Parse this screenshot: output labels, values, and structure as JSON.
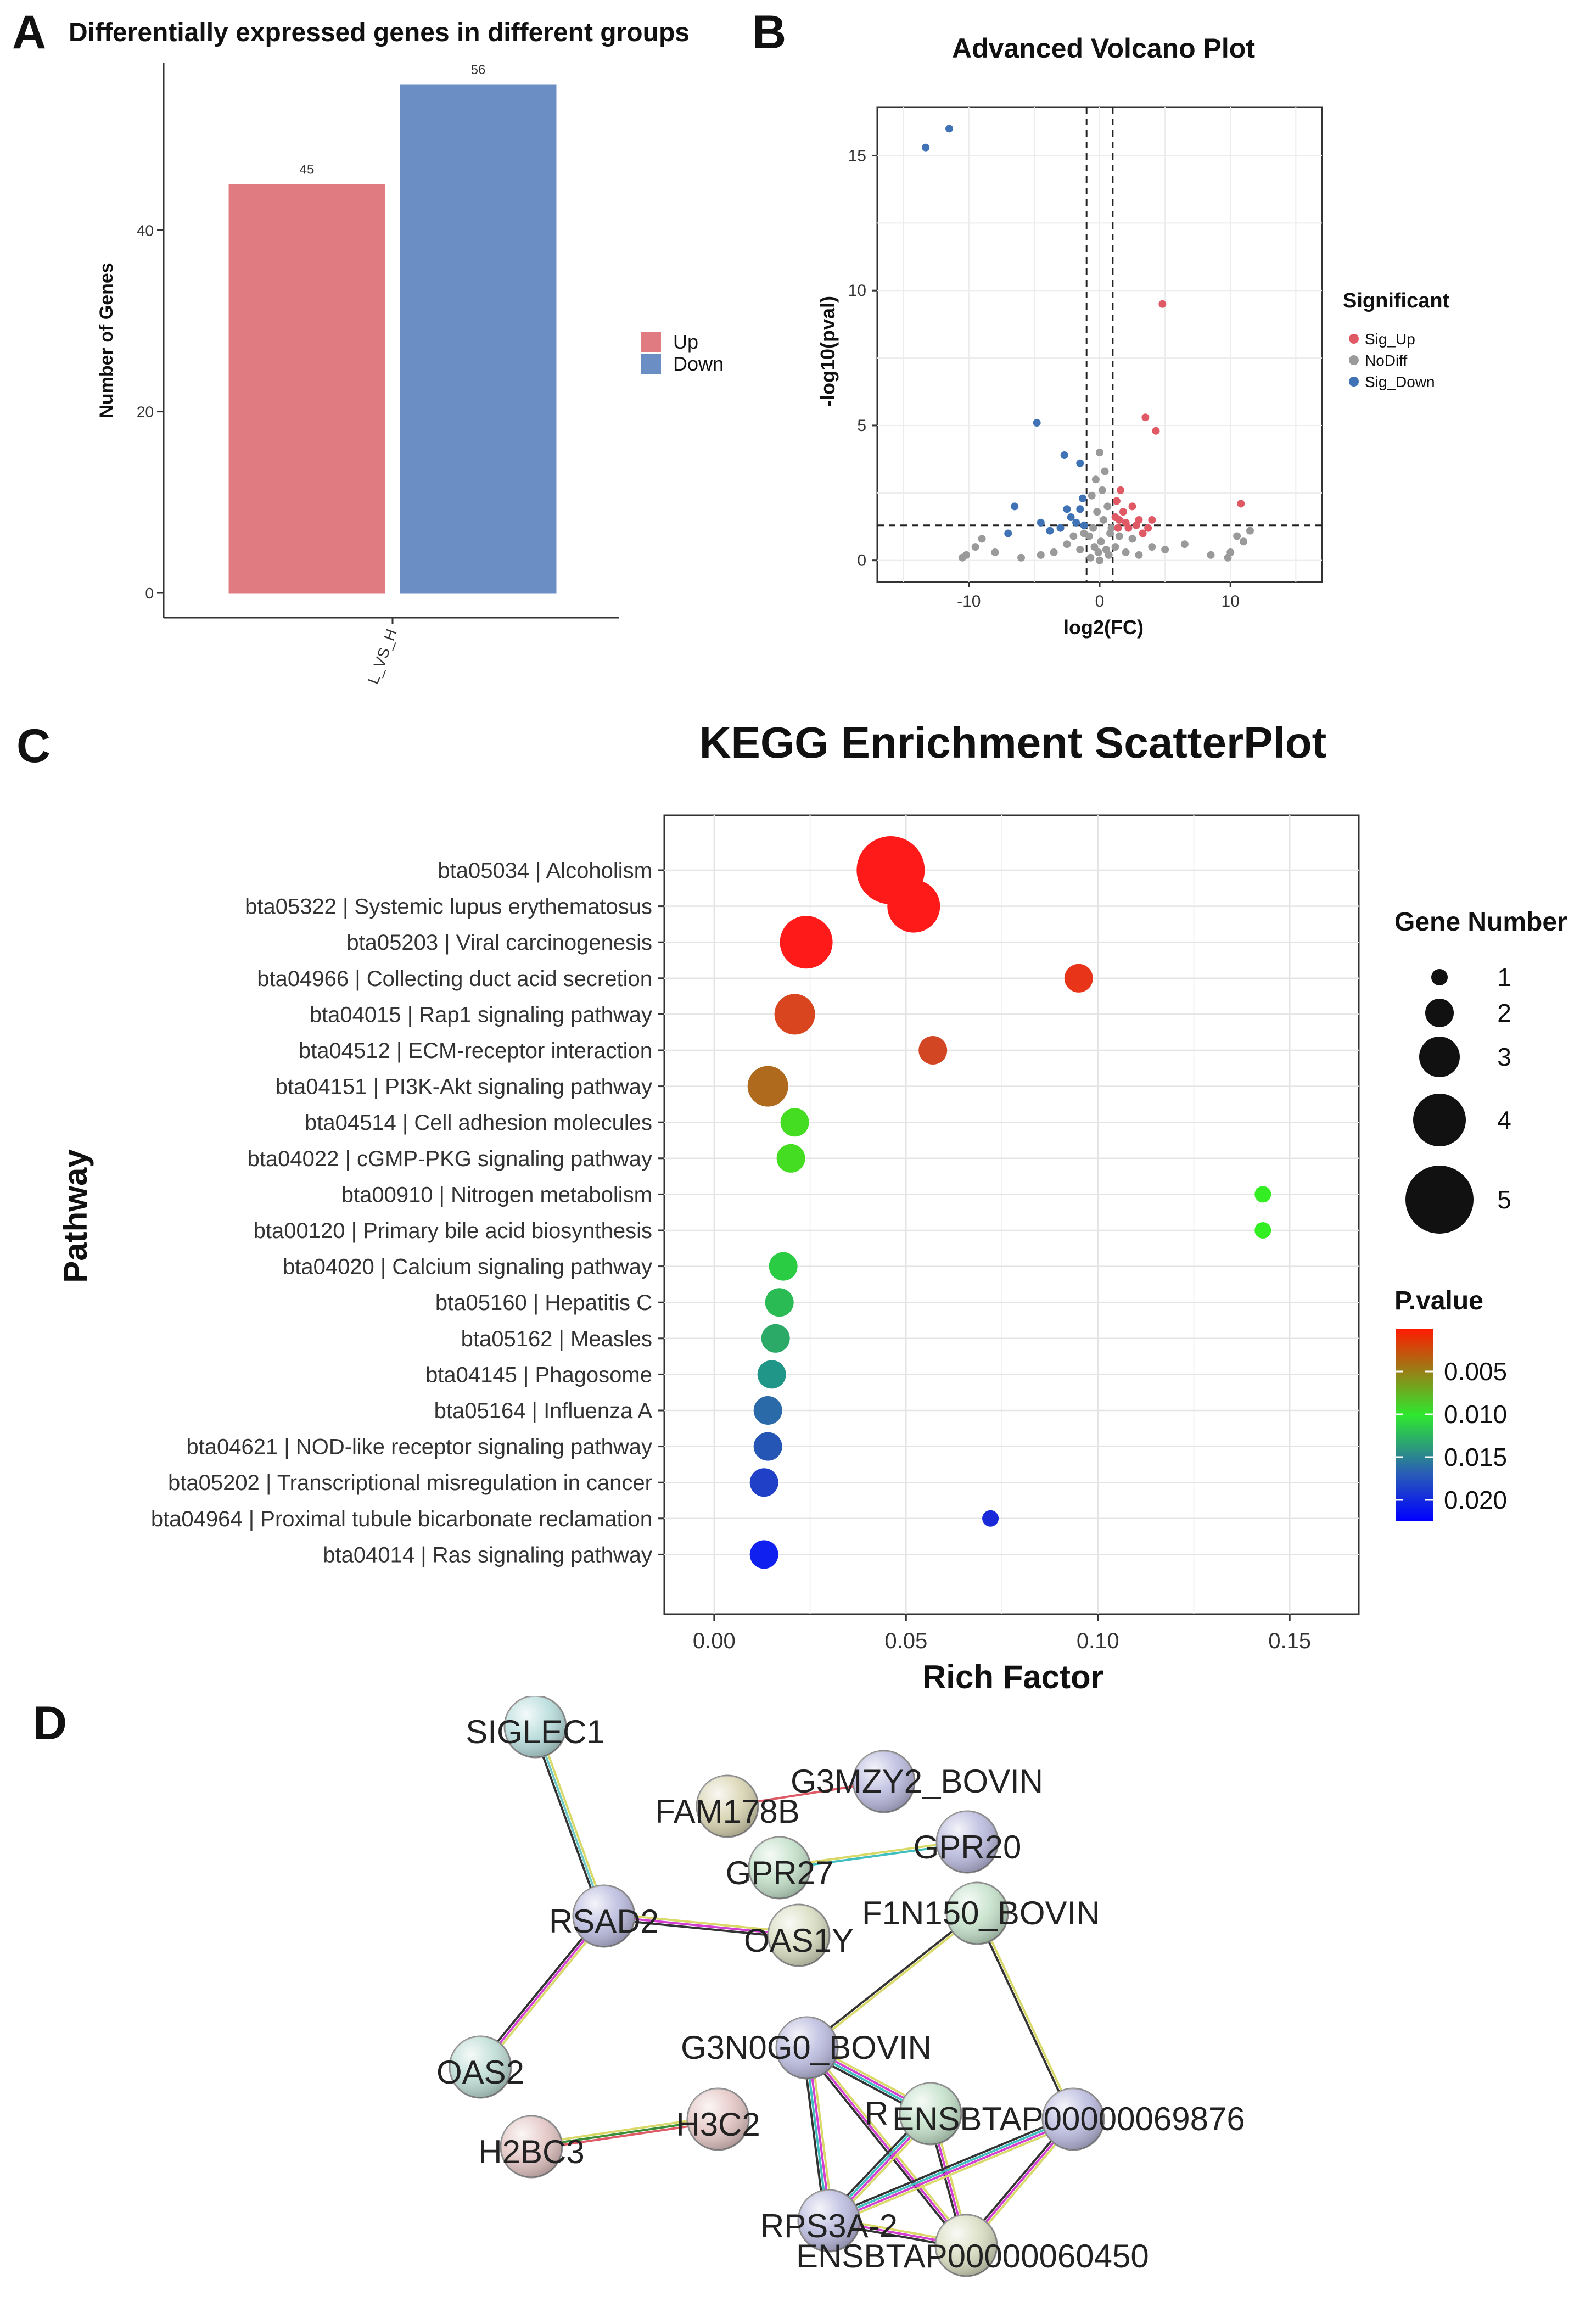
{
  "panel_letters": {
    "a": "A",
    "b": "B",
    "c": "C",
    "d": "D"
  },
  "chart_data": [
    {
      "type": "bar",
      "title": "Differentially expressed genes in different groups",
      "categories": [
        "L_VS_H"
      ],
      "series": [
        {
          "name": "Up",
          "values": [
            45
          ],
          "color": "#e07b82"
        },
        {
          "name": "Down",
          "values": [
            56
          ],
          "color": "#6b8fc4"
        }
      ],
      "data_labels": [
        "45",
        "56"
      ],
      "xlabel": "",
      "ylabel": "Number of Genes",
      "ylim": [
        0,
        60
      ],
      "yticks": [
        0,
        20,
        40
      ],
      "legend": [
        "Up",
        "Down"
      ]
    },
    {
      "type": "scatter",
      "title": "Advanced Volcano Plot",
      "xlabel": "log2(FC)",
      "ylabel": "-log10(pval)",
      "xlim": [
        -17,
        17
      ],
      "ylim": [
        -0.8,
        16.8
      ],
      "xticks": [
        -10,
        0,
        10
      ],
      "yticks": [
        0,
        5,
        10,
        15
      ],
      "vlines": [
        -1,
        1
      ],
      "hline": 1.3,
      "legend_title": "Significant",
      "legend": [
        {
          "name": "Sig_Up",
          "color": "#e05a66"
        },
        {
          "name": "NoDiff",
          "color": "#9a9a9a"
        },
        {
          "name": "Sig_Down",
          "color": "#3f73b5"
        }
      ],
      "points_up": [
        [
          4.8,
          9.5
        ],
        [
          3.5,
          5.3
        ],
        [
          4.3,
          4.8
        ],
        [
          10.8,
          2.1
        ],
        [
          1.6,
          2.6
        ],
        [
          1.5,
          1.5
        ],
        [
          2.0,
          1.4
        ],
        [
          2.5,
          2.0
        ],
        [
          3.0,
          1.5
        ],
        [
          1.3,
          2.2
        ],
        [
          1.8,
          1.8
        ],
        [
          2.2,
          1.2
        ],
        [
          3.3,
          1.0
        ],
        [
          4.0,
          1.5
        ],
        [
          1.4,
          1.2
        ],
        [
          2.8,
          1.3
        ],
        [
          1.2,
          1.6
        ],
        [
          3.7,
          1.2
        ]
      ],
      "points_down": [
        [
          -13.3,
          15.3
        ],
        [
          -11.5,
          16.0
        ],
        [
          -4.8,
          5.1
        ],
        [
          -2.7,
          3.9
        ],
        [
          -1.5,
          3.6
        ],
        [
          -7.0,
          1.0
        ],
        [
          -4.5,
          1.4
        ],
        [
          -3.0,
          1.2
        ],
        [
          -2.2,
          1.6
        ],
        [
          -1.5,
          1.9
        ],
        [
          -1.2,
          1.3
        ],
        [
          -1.8,
          1.4
        ],
        [
          -2.5,
          1.9
        ],
        [
          -1.3,
          2.3
        ],
        [
          -6.5,
          2.0
        ],
        [
          -3.8,
          1.1
        ]
      ],
      "points_nodiff": [
        [
          0,
          4.0
        ],
        [
          0.4,
          3.3
        ],
        [
          -0.3,
          3.0
        ],
        [
          0.2,
          2.6
        ],
        [
          -0.6,
          2.4
        ],
        [
          0.6,
          2.0
        ],
        [
          -0.2,
          1.8
        ],
        [
          0.3,
          1.5
        ],
        [
          -0.5,
          1.2
        ],
        [
          0.8,
          1.0
        ],
        [
          -0.8,
          0.9
        ],
        [
          0.1,
          0.7
        ],
        [
          -0.4,
          0.5
        ],
        [
          0.5,
          0.4
        ],
        [
          -0.1,
          0.3
        ],
        [
          0.7,
          0.2
        ],
        [
          -0.7,
          0.1
        ],
        [
          0.0,
          0.0
        ],
        [
          1.2,
          0.5
        ],
        [
          -1.5,
          0.4
        ],
        [
          2.0,
          0.3
        ],
        [
          -2.5,
          0.6
        ],
        [
          3.0,
          0.2
        ],
        [
          -3.5,
          0.3
        ],
        [
          4.0,
          0.5
        ],
        [
          -4.5,
          0.2
        ],
        [
          5.0,
          0.4
        ],
        [
          -6.0,
          0.1
        ],
        [
          6.5,
          0.6
        ],
        [
          -8.0,
          0.3
        ],
        [
          8.5,
          0.2
        ],
        [
          -9.5,
          0.5
        ],
        [
          10.0,
          0.3
        ],
        [
          -10.5,
          0.1
        ],
        [
          11.0,
          0.7
        ],
        [
          11.5,
          1.1
        ],
        [
          10.5,
          0.9
        ],
        [
          -9.0,
          0.8
        ],
        [
          -10.2,
          0.2
        ],
        [
          9.8,
          0.1
        ],
        [
          1.5,
          0.9
        ],
        [
          -1.2,
          1.0
        ],
        [
          2.5,
          0.8
        ],
        [
          -2.0,
          0.9
        ],
        [
          0.9,
          1.2
        ]
      ]
    },
    {
      "type": "scatter",
      "title": "KEGG Enrichment ScatterPlot",
      "xlabel": "Rich Factor",
      "ylabel": "Pathway",
      "xlim": [
        -0.013,
        0.168
      ],
      "xticks": [
        0.0,
        0.05,
        0.1,
        0.15
      ],
      "xtick_labels": [
        "0.00",
        "0.05",
        "0.10",
        "0.15"
      ],
      "size_legend_title": "Gene Number",
      "size_legend": [
        1,
        2,
        3,
        4,
        5
      ],
      "color_legend_title": "P.value",
      "color_legend_ticks": [
        "0.005",
        "0.010",
        "0.015",
        "0.020"
      ],
      "pathways": [
        "bta05034 | Alcoholism",
        "bta05322 | Systemic lupus erythematosus",
        "bta05203 | Viral carcinogenesis",
        "bta04966 | Collecting duct acid secretion",
        "bta04015 | Rap1 signaling pathway",
        "bta04512 | ECM-receptor interaction",
        "bta04151 | PI3K-Akt signaling pathway",
        "bta04514 | Cell adhesion molecules",
        "bta04022 | cGMP-PKG signaling pathway",
        "bta00910 | Nitrogen metabolism",
        "bta00120 | Primary bile acid biosynthesis",
        "bta04020 | Calcium signaling pathway",
        "bta05160 | Hepatitis C",
        "bta05162 | Measles",
        "bta04145 | Phagosome",
        "bta05164 | Influenza A",
        "bta04621 | NOD-like receptor signaling pathway",
        "bta05202 | Transcriptional misregulation in cancer",
        "bta04964 | Proximal tubule bicarbonate reclamation",
        "bta04014 | Ras signaling pathway"
      ],
      "rich_factor": [
        0.046,
        0.052,
        0.024,
        0.095,
        0.021,
        0.057,
        0.014,
        0.021,
        0.02,
        0.143,
        0.143,
        0.018,
        0.017,
        0.016,
        0.015,
        0.014,
        0.014,
        0.013,
        0.072,
        0.013
      ],
      "gene_number": [
        5,
        4,
        4,
        2,
        3,
        2,
        3,
        2,
        2,
        1,
        1,
        2,
        2,
        2,
        2,
        2,
        2,
        2,
        1,
        2
      ],
      "p_value_color": [
        "#ff1a1a",
        "#ff1a1a",
        "#ff1a1a",
        "#e8351a",
        "#d8451e",
        "#d24624",
        "#b06a1e",
        "#44dd22",
        "#44dd22",
        "#33ee22",
        "#33ee22",
        "#2acc44",
        "#2bbb55",
        "#2aaa66",
        "#1f9688",
        "#2a6aa8",
        "#2555b5",
        "#2040c8",
        "#1a2ad8",
        "#1020ee"
      ]
    }
  ],
  "network": {
    "nodes": [
      {
        "id": "SIGLEC1",
        "label": "SIGLEC1",
        "color": "#b6dcdb"
      },
      {
        "id": "FAM178B",
        "label": "FAM178B",
        "color": "#d8d3b0"
      },
      {
        "id": "G3MZY2_BOVIN",
        "label": "G3MZY2_BOVIN",
        "color": "#b9b9de"
      },
      {
        "id": "GPR20",
        "label": "GPR20",
        "color": "#b9b9de"
      },
      {
        "id": "GPR27",
        "label": "GPR27",
        "color": "#c2e0c8"
      },
      {
        "id": "RSAD2",
        "label": "RSAD2",
        "color": "#b9b9de"
      },
      {
        "id": "F1N150_BOVIN",
        "label": "F1N150_BOVIN",
        "color": "#c2e0c8"
      },
      {
        "id": "OAS1Y",
        "label": "OAS1Y",
        "color": "#d8dcbf"
      },
      {
        "id": "OAS2",
        "label": "OAS2",
        "color": "#bcdcd3"
      },
      {
        "id": "G3N0G0_BOVIN",
        "label": "G3N0G0_BOVIN",
        "color": "#b9b9de"
      },
      {
        "id": "H3C2",
        "label": "H3C2",
        "color": "#e3c5c3"
      },
      {
        "id": "H2BC3",
        "label": "H2BC3",
        "color": "#e3c5c3"
      },
      {
        "id": "R_node",
        "label": "R",
        "color": "#c2e0c8"
      },
      {
        "id": "ENSBTAP00000069876",
        "label": "ENSBTAP00000069876",
        "color": "#b9b9de"
      },
      {
        "id": "RPS3A-2",
        "label": "RPS3A-2",
        "color": "#b9b9de"
      },
      {
        "id": "ENSBTAP00000060450",
        "label": "ENSBTAP00000060450",
        "color": "#d8dcbf"
      }
    ]
  }
}
